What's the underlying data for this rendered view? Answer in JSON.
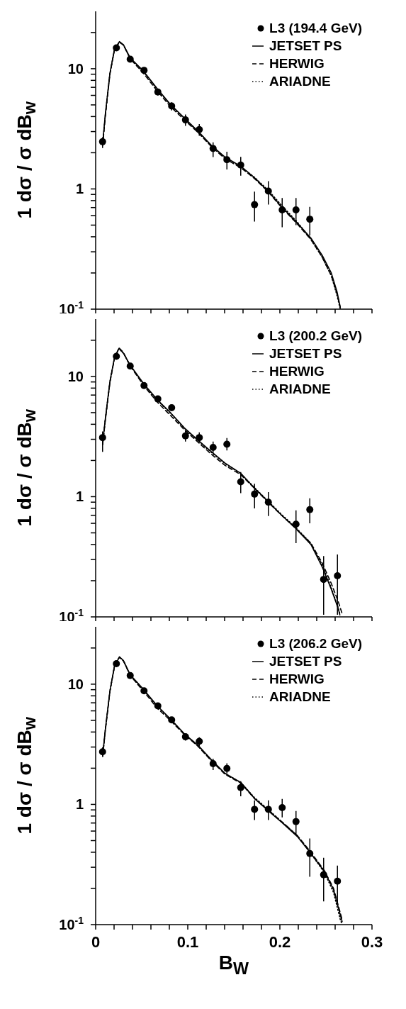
{
  "chart_data": [
    {
      "type": "line",
      "ylabel": "1 dσ / σ dB$_{w}$",
      "log": "y",
      "legend": "top right",
      "tick_labels": "y",
      "xlim": [
        0,
        0.3
      ],
      "ylim": [
        0.1,
        30
      ],
      "xticks": [
        0,
        {
          "value": 0.02,
          "label": null
        },
        {
          "value": 0.04,
          "label": null
        },
        {
          "value": 0.06,
          "label": null
        },
        {
          "value": 0.08,
          "label": null
        },
        0.1,
        {
          "value": 0.12,
          "label": null
        },
        {
          "value": 0.14,
          "label": null
        },
        {
          "value": 0.16,
          "label": null
        },
        {
          "value": 0.18,
          "label": null
        },
        0.2,
        {
          "value": 0.22,
          "label": null
        },
        {
          "value": 0.24,
          "label": null
        },
        {
          "value": 0.26,
          "label": null
        },
        {
          "value": 0.28,
          "label": null
        },
        0.3
      ],
      "yticks": [
        {
          "value": 0.1,
          "label": "10$^{-1}$"
        },
        {
          "value": 0.2,
          "label": null
        },
        {
          "value": 0.3,
          "label": null
        },
        {
          "value": 0.4,
          "label": null
        },
        {
          "value": 0.5,
          "label": null
        },
        {
          "value": 0.6,
          "label": null
        },
        {
          "value": 0.7,
          "label": null
        },
        {
          "value": 0.8,
          "label": null
        },
        {
          "value": 0.9,
          "label": null
        },
        {
          "value": 1,
          "label": "1"
        },
        {
          "value": 2,
          "label": null
        },
        {
          "value": 3,
          "label": null
        },
        {
          "value": 4,
          "label": null
        },
        {
          "value": 5,
          "label": null
        },
        {
          "value": 6,
          "label": null
        },
        {
          "value": 7,
          "label": null
        },
        {
          "value": 8,
          "label": null
        },
        {
          "value": 9,
          "label": null
        },
        {
          "value": 10,
          "label": "10"
        },
        {
          "value": 20,
          "label": null
        }
      ],
      "series": [
        {
          "name": "L3 (194.4 GeV)",
          "type": "scatter",
          "marker": "circle",
          "color": "#000000",
          "x": [
            0.0075,
            0.0225,
            0.0375,
            0.0525,
            0.0675,
            0.0825,
            0.0975,
            0.1125,
            0.1275,
            0.1425,
            0.1575,
            0.1725,
            0.1875,
            0.2025,
            0.2175,
            0.2325
          ],
          "values": [
            2.47,
            14.9,
            12.0,
            9.7,
            6.4,
            4.9,
            3.75,
            3.12,
            2.17,
            1.75,
            1.58,
            0.74,
            0.96,
            0.67,
            0.67,
            0.56
          ],
          "errors": [
            [
              2.19,
              2.69
            ],
            null,
            null,
            null,
            [
              6.0,
              6.7
            ],
            [
              4.5,
              5.26
            ],
            [
              3.35,
              4.16
            ],
            [
              2.77,
              3.46
            ],
            [
              1.84,
              2.44
            ],
            [
              1.45,
              2.04
            ],
            [
              1.29,
              1.85
            ],
            [
              0.535,
              0.95
            ],
            [
              0.74,
              1.16
            ],
            [
              0.48,
              0.84
            ],
            [
              0.5,
              0.84
            ],
            [
              0.41,
              0.71
            ]
          ]
        },
        {
          "name": "JETSET PS",
          "type": "line",
          "line_style": "solid",
          "color": "#000000",
          "x": [
            0.0076,
            0.0105,
            0.0155,
            0.0204,
            0.0258,
            0.0302,
            0.0375,
            0.0522,
            0.067,
            0.0817,
            0.0964,
            0.111,
            0.1257,
            0.1405,
            0.1577,
            0.1724,
            0.1871,
            0.2019,
            0.219,
            0.2337,
            0.246,
            0.2558,
            0.262,
            0.2656
          ],
          "values": [
            2.38,
            4.2,
            9.2,
            14.5,
            16.8,
            15.8,
            12.3,
            9.5,
            6.8,
            5.0,
            3.88,
            3.03,
            2.3,
            1.84,
            1.54,
            1.24,
            0.96,
            0.71,
            0.52,
            0.39,
            0.28,
            0.2,
            0.14,
            0.104
          ]
        },
        {
          "name": "HERWIG",
          "type": "line",
          "line_style": "dashed",
          "color": "#000000",
          "x": [
            0.0076,
            0.0105,
            0.0155,
            0.0204,
            0.0258,
            0.0302,
            0.0375,
            0.0522,
            0.067,
            0.0817,
            0.0964,
            0.111,
            0.1257,
            0.1405,
            0.1577,
            0.1724,
            0.1871,
            0.2019,
            0.219,
            0.2337,
            0.246,
            0.2558,
            0.262,
            0.2656
          ],
          "values": [
            2.3,
            4.0,
            9.0,
            14.3,
            16.6,
            15.7,
            12.1,
            9.1,
            6.5,
            4.8,
            3.75,
            2.95,
            2.25,
            1.78,
            1.5,
            1.22,
            0.95,
            0.7,
            0.51,
            0.38,
            0.27,
            0.19,
            0.135,
            0.102
          ]
        },
        {
          "name": "ARIADNE",
          "type": "line",
          "line_style": "dotted",
          "color": "#000000",
          "x": [
            0.0076,
            0.0105,
            0.0155,
            0.0204,
            0.0258,
            0.0302,
            0.0375,
            0.0522,
            0.067,
            0.0817,
            0.0964,
            0.111,
            0.1257,
            0.1405,
            0.1577,
            0.1724,
            0.1871,
            0.2019,
            0.219,
            0.2337,
            0.246,
            0.2558,
            0.262,
            0.2656
          ],
          "values": [
            2.35,
            4.1,
            9.1,
            14.4,
            16.7,
            15.7,
            12.2,
            9.4,
            6.7,
            4.95,
            3.85,
            3.0,
            2.28,
            1.82,
            1.53,
            1.25,
            0.98,
            0.73,
            0.53,
            0.38,
            0.27,
            0.19,
            0.13,
            0.1
          ]
        }
      ]
    },
    {
      "type": "line",
      "ylabel": "1 dσ / σ dB$_{w}$",
      "log": "y",
      "legend": "top right",
      "tick_labels": "y",
      "xlim": [
        0,
        0.3
      ],
      "ylim": [
        0.1,
        30
      ],
      "xticks": [
        0,
        {
          "value": 0.02,
          "label": null
        },
        {
          "value": 0.04,
          "label": null
        },
        {
          "value": 0.06,
          "label": null
        },
        {
          "value": 0.08,
          "label": null
        },
        0.1,
        {
          "value": 0.12,
          "label": null
        },
        {
          "value": 0.14,
          "label": null
        },
        {
          "value": 0.16,
          "label": null
        },
        {
          "value": 0.18,
          "label": null
        },
        0.2,
        {
          "value": 0.22,
          "label": null
        },
        {
          "value": 0.24,
          "label": null
        },
        {
          "value": 0.26,
          "label": null
        },
        {
          "value": 0.28,
          "label": null
        },
        0.3
      ],
      "yticks": [
        {
          "value": 0.1,
          "label": "10$^{-1}$"
        },
        {
          "value": 0.2,
          "label": null
        },
        {
          "value": 0.3,
          "label": null
        },
        {
          "value": 0.4,
          "label": null
        },
        {
          "value": 0.5,
          "label": null
        },
        {
          "value": 0.6,
          "label": null
        },
        {
          "value": 0.7,
          "label": null
        },
        {
          "value": 0.8,
          "label": null
        },
        {
          "value": 0.9,
          "label": null
        },
        {
          "value": 1,
          "label": "1"
        },
        {
          "value": 2,
          "label": null
        },
        {
          "value": 3,
          "label": null
        },
        {
          "value": 4,
          "label": null
        },
        {
          "value": 5,
          "label": null
        },
        {
          "value": 6,
          "label": null
        },
        {
          "value": 7,
          "label": null
        },
        {
          "value": 8,
          "label": null
        },
        {
          "value": 9,
          "label": null
        },
        {
          "value": 10,
          "label": "10"
        },
        {
          "value": 20,
          "label": null
        }
      ],
      "series": [
        {
          "name": "L3 (200.2 GeV)",
          "type": "scatter",
          "marker": "circle",
          "color": "#000000",
          "x": [
            0.0075,
            0.0225,
            0.0375,
            0.0525,
            0.0675,
            0.0825,
            0.0975,
            0.1125,
            0.1275,
            0.1425,
            0.1575,
            0.1725,
            0.1875,
            0.2175,
            0.2325,
            0.2475,
            0.2625
          ],
          "values": [
            3.1,
            14.7,
            12.2,
            8.4,
            6.5,
            5.5,
            3.2,
            3.1,
            2.57,
            2.73,
            1.33,
            1.05,
            0.9,
            0.59,
            0.78,
            0.205,
            0.22
          ],
          "errors": [
            [
              2.36,
              3.49
            ],
            null,
            null,
            null,
            null,
            null,
            [
              2.87,
              3.57
            ],
            [
              2.84,
              3.43
            ],
            [
              2.31,
              2.87
            ],
            [
              2.42,
              3.07
            ],
            [
              1.07,
              1.6
            ],
            [
              0.8,
              1.28
            ],
            [
              0.69,
              1.09
            ],
            [
              0.41,
              0.77
            ],
            [
              0.6,
              0.97
            ],
            [
              0.104,
              0.32
            ],
            [
              0.104,
              0.33
            ]
          ]
        },
        {
          "name": "JETSET PS",
          "type": "line",
          "line_style": "solid",
          "color": "#000000",
          "x": [
            0.0076,
            0.0105,
            0.0155,
            0.0204,
            0.0253,
            0.0302,
            0.0375,
            0.0522,
            0.067,
            0.0817,
            0.0964,
            0.111,
            0.1257,
            0.1405,
            0.1577,
            0.1724,
            0.1871,
            0.2019,
            0.2166,
            0.2337,
            0.246,
            0.2558,
            0.2632,
            0.2651
          ],
          "values": [
            2.81,
            4.44,
            9.1,
            14.3,
            17.1,
            15.6,
            12.4,
            8.7,
            6.4,
            4.95,
            3.73,
            2.96,
            2.36,
            1.9,
            1.56,
            1.18,
            0.91,
            0.7,
            0.55,
            0.4,
            0.26,
            0.17,
            0.118,
            0.104
          ]
        },
        {
          "name": "HERWIG",
          "type": "line",
          "line_style": "dashed",
          "color": "#000000",
          "x": [
            0.0076,
            0.0105,
            0.0155,
            0.0204,
            0.0253,
            0.0302,
            0.0375,
            0.0522,
            0.067,
            0.0817,
            0.0964,
            0.111,
            0.1257,
            0.1405,
            0.1577,
            0.1724,
            0.1871,
            0.2019,
            0.2166,
            0.2337,
            0.246,
            0.2558,
            0.2632,
            0.268
          ],
          "values": [
            2.7,
            4.3,
            8.9,
            14.1,
            17.3,
            15.8,
            12.2,
            8.4,
            6.1,
            4.7,
            3.6,
            2.85,
            2.25,
            1.82,
            1.52,
            1.17,
            0.9,
            0.7,
            0.55,
            0.41,
            0.28,
            0.19,
            0.135,
            0.104
          ]
        },
        {
          "name": "ARIADNE",
          "type": "line",
          "line_style": "dotted",
          "color": "#000000",
          "x": [
            0.0076,
            0.0105,
            0.0155,
            0.0204,
            0.0253,
            0.0302,
            0.0375,
            0.0522,
            0.067,
            0.0817,
            0.0964,
            0.111,
            0.1257,
            0.1405,
            0.1577,
            0.1724,
            0.1871,
            0.2019,
            0.2166,
            0.2337,
            0.246,
            0.2558,
            0.2632,
            0.2651
          ],
          "values": [
            2.75,
            4.4,
            9.0,
            14.2,
            17.0,
            15.6,
            12.3,
            8.6,
            6.3,
            4.9,
            3.7,
            2.93,
            2.33,
            1.88,
            1.55,
            1.19,
            0.92,
            0.71,
            0.56,
            0.41,
            0.27,
            0.175,
            0.12,
            0.106
          ]
        }
      ]
    },
    {
      "type": "line",
      "ylabel": "1 dσ / σ dB$_{w}$",
      "xlabel": "B$_{W}$",
      "log": "y",
      "legend": "top right",
      "xlim": [
        0,
        0.3
      ],
      "ylim": [
        0.1,
        30
      ],
      "xticks": [
        0,
        {
          "value": 0.02,
          "label": null
        },
        {
          "value": 0.04,
          "label": null
        },
        {
          "value": 0.06,
          "label": null
        },
        {
          "value": 0.08,
          "label": null
        },
        0.1,
        {
          "value": 0.12,
          "label": null
        },
        {
          "value": 0.14,
          "label": null
        },
        {
          "value": 0.16,
          "label": null
        },
        {
          "value": 0.18,
          "label": null
        },
        0.2,
        {
          "value": 0.22,
          "label": null
        },
        {
          "value": 0.24,
          "label": null
        },
        {
          "value": 0.26,
          "label": null
        },
        {
          "value": 0.28,
          "label": null
        },
        0.3
      ],
      "yticks": [
        {
          "value": 0.1,
          "label": "10$^{-1}$"
        },
        {
          "value": 0.2,
          "label": null
        },
        {
          "value": 0.3,
          "label": null
        },
        {
          "value": 0.4,
          "label": null
        },
        {
          "value": 0.5,
          "label": null
        },
        {
          "value": 0.6,
          "label": null
        },
        {
          "value": 0.7,
          "label": null
        },
        {
          "value": 0.8,
          "label": null
        },
        {
          "value": 0.9,
          "label": null
        },
        {
          "value": 1,
          "label": "1"
        },
        {
          "value": 2,
          "label": null
        },
        {
          "value": 3,
          "label": null
        },
        {
          "value": 4,
          "label": null
        },
        {
          "value": 5,
          "label": null
        },
        {
          "value": 6,
          "label": null
        },
        {
          "value": 7,
          "label": null
        },
        {
          "value": 8,
          "label": null
        },
        {
          "value": 9,
          "label": null
        },
        {
          "value": 10,
          "label": "10"
        },
        {
          "value": 20,
          "label": null
        }
      ],
      "series": [
        {
          "name": "L3 (206.2 GeV)",
          "type": "scatter",
          "marker": "circle",
          "color": "#000000",
          "x": [
            0.0075,
            0.0225,
            0.0375,
            0.0525,
            0.0675,
            0.0825,
            0.0975,
            0.1125,
            0.1275,
            0.1425,
            0.1575,
            0.1725,
            0.1875,
            0.2025,
            0.2175,
            0.2325,
            0.2475,
            0.2625
          ],
          "values": [
            2.74,
            14.8,
            11.8,
            8.8,
            6.6,
            5.05,
            3.65,
            3.35,
            2.18,
            1.99,
            1.38,
            0.91,
            0.91,
            0.94,
            0.72,
            0.39,
            0.26,
            0.23
          ],
          "errors": [
            [
              2.5,
              2.98
            ],
            null,
            null,
            null,
            null,
            null,
            [
              3.39,
              3.86
            ],
            [
              3.04,
              3.62
            ],
            [
              1.93,
              2.4
            ],
            [
              1.81,
              2.2
            ],
            [
              1.17,
              1.56
            ],
            [
              0.74,
              1.08
            ],
            [
              0.74,
              1.08
            ],
            [
              0.78,
              1.11
            ],
            [
              0.56,
              0.88
            ],
            [
              0.25,
              0.52
            ],
            [
              0.156,
              0.36
            ],
            [
              0.151,
              0.31
            ]
          ]
        },
        {
          "name": "JETSET PS",
          "type": "line",
          "line_style": "solid",
          "color": "#000000",
          "x": [
            0.0076,
            0.0105,
            0.0155,
            0.0204,
            0.0258,
            0.0302,
            0.0375,
            0.0522,
            0.067,
            0.0817,
            0.0964,
            0.111,
            0.1257,
            0.1405,
            0.1577,
            0.1724,
            0.1871,
            0.2019,
            0.219,
            0.2337,
            0.2485,
            0.2583,
            0.2656,
            0.2676
          ],
          "values": [
            2.56,
            4.2,
            8.8,
            14.1,
            16.9,
            15.7,
            12.0,
            9.0,
            6.6,
            5.1,
            3.86,
            3.11,
            2.35,
            1.81,
            1.52,
            1.12,
            0.89,
            0.71,
            0.54,
            0.39,
            0.275,
            0.195,
            0.12,
            0.106
          ]
        },
        {
          "name": "HERWIG",
          "type": "line",
          "line_style": "dashed",
          "color": "#000000",
          "x": [
            0.0076,
            0.0105,
            0.0155,
            0.0204,
            0.0258,
            0.0302,
            0.0375,
            0.0522,
            0.067,
            0.0817,
            0.0964,
            0.111,
            0.1257,
            0.1405,
            0.1577,
            0.1724,
            0.1871,
            0.2019,
            0.219,
            0.2337,
            0.2485,
            0.2583,
            0.2656,
            0.2676
          ],
          "values": [
            2.5,
            4.1,
            8.7,
            14.0,
            16.8,
            15.6,
            11.8,
            8.7,
            6.3,
            4.95,
            3.8,
            3.05,
            2.3,
            1.78,
            1.5,
            1.12,
            0.9,
            0.72,
            0.55,
            0.4,
            0.28,
            0.2,
            0.125,
            0.11
          ]
        },
        {
          "name": "ARIADNE",
          "type": "line",
          "line_style": "dotted",
          "color": "#000000",
          "x": [
            0.0076,
            0.0105,
            0.0155,
            0.0204,
            0.0258,
            0.0302,
            0.0375,
            0.0522,
            0.067,
            0.0817,
            0.0964,
            0.111,
            0.1257,
            0.1405,
            0.1577,
            0.1724,
            0.1871,
            0.2019,
            0.219,
            0.2337,
            0.2485,
            0.2583,
            0.2656,
            0.2676
          ],
          "values": [
            2.52,
            4.15,
            8.75,
            14.0,
            16.8,
            15.6,
            11.9,
            8.9,
            6.5,
            5.05,
            3.84,
            3.08,
            2.33,
            1.8,
            1.52,
            1.14,
            0.91,
            0.72,
            0.55,
            0.39,
            0.27,
            0.185,
            0.11,
            0.1
          ]
        }
      ]
    }
  ]
}
